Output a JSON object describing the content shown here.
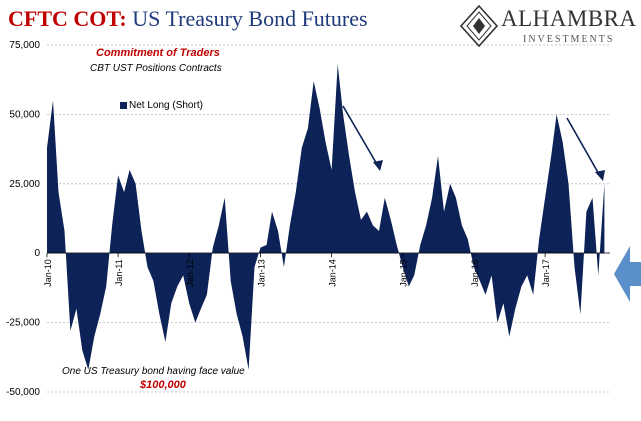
{
  "title": {
    "part1": "CFTC COT:",
    "part2": " US Treasury Bond Futures"
  },
  "logo": {
    "name": "ALHAMBRA",
    "sub": "INVESTMENTS"
  },
  "annotations": {
    "heading": "Commitment of Traders",
    "subheading": "CBT UST Positions Contracts",
    "note": "One US Treasury bond having face value",
    "face_value": "$100,000"
  },
  "chart_data": {
    "type": "area",
    "title": "CFTC COT: US Treasury Bond Futures",
    "xlabel": "",
    "ylabel": "",
    "ylim": [
      -50000,
      75000
    ],
    "yticks": [
      "75,000",
      "50,000",
      "25,000",
      "0",
      "-25,000",
      "-50,000"
    ],
    "xticks": [
      "Jan-10",
      "Jan-11",
      "Jan-12",
      "Jan-13",
      "Jan-14",
      "Jan-15",
      "Jan-16",
      "Jan-17"
    ],
    "grid": true,
    "legend": "top-left",
    "series": [
      {
        "name": "Net Long (Short)",
        "color": "#0d2357",
        "x": [
          "2010-01",
          "2010-02",
          "2010-03",
          "2010-04",
          "2010-05",
          "2010-06",
          "2010-07",
          "2010-08",
          "2010-09",
          "2010-10",
          "2010-11",
          "2010-12",
          "2011-01",
          "2011-02",
          "2011-03",
          "2011-04",
          "2011-05",
          "2011-06",
          "2011-07",
          "2011-08",
          "2011-09",
          "2011-10",
          "2011-11",
          "2011-12",
          "2012-01",
          "2012-02",
          "2012-03",
          "2012-04",
          "2012-05",
          "2012-06",
          "2012-07",
          "2012-08",
          "2012-09",
          "2012-10",
          "2012-11",
          "2012-12",
          "2013-01",
          "2013-02",
          "2013-03",
          "2013-04",
          "2013-05",
          "2013-06",
          "2013-07",
          "2013-08",
          "2013-09",
          "2013-10",
          "2013-11",
          "2013-12",
          "2014-01",
          "2014-02",
          "2014-03",
          "2014-04",
          "2014-05",
          "2014-06",
          "2014-07",
          "2014-08",
          "2014-09",
          "2014-10",
          "2014-11",
          "2014-12",
          "2015-01",
          "2015-02",
          "2015-03",
          "2015-04",
          "2015-05",
          "2015-06",
          "2015-07",
          "2015-08",
          "2015-09",
          "2015-10",
          "2015-11",
          "2015-12",
          "2016-01",
          "2016-02",
          "2016-03",
          "2016-04",
          "2016-05",
          "2016-06",
          "2016-07",
          "2016-08",
          "2016-09",
          "2016-10",
          "2016-11",
          "2016-12",
          "2017-01",
          "2017-02",
          "2017-03",
          "2017-04",
          "2017-05",
          "2017-06",
          "2017-07",
          "2017-08",
          "2017-09",
          "2017-10",
          "2017-11"
        ],
        "values": [
          38000,
          55000,
          22000,
          8000,
          -28000,
          -20000,
          -35000,
          -42000,
          -30000,
          -22000,
          -12000,
          10000,
          28000,
          22000,
          30000,
          25000,
          8000,
          -5000,
          -10000,
          -22000,
          -32000,
          -18000,
          -12000,
          -8000,
          -18000,
          -25000,
          -20000,
          -15000,
          2000,
          10000,
          20000,
          -10000,
          -22000,
          -30000,
          -42000,
          -5000,
          2000,
          3000,
          15000,
          8000,
          -5000,
          10000,
          22000,
          38000,
          45000,
          62000,
          52000,
          40000,
          30000,
          68000,
          50000,
          35000,
          22000,
          12000,
          15000,
          10000,
          8000,
          20000,
          12000,
          3000,
          -5000,
          -12000,
          -8000,
          3000,
          10000,
          20000,
          35000,
          15000,
          25000,
          20000,
          10000,
          5000,
          -5000,
          -10000,
          -15000,
          -8000,
          -25000,
          -18000,
          -30000,
          -20000,
          -12000,
          -8000,
          -15000,
          5000,
          20000,
          35000,
          50000,
          40000,
          25000,
          -5000,
          -22000,
          15000,
          20000,
          -8000,
          25000
        ]
      }
    ]
  }
}
